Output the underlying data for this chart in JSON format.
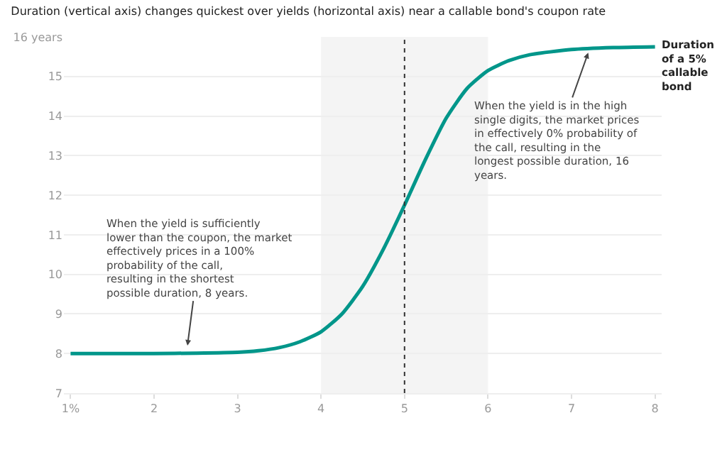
{
  "chart_data": {
    "type": "line",
    "title": "Duration (vertical axis) changes quickest over yields (horizontal axis) near a callable bond's coupon rate",
    "x": [
      1,
      1.5,
      2,
      2.5,
      3,
      3.25,
      3.5,
      3.75,
      4,
      4.25,
      4.5,
      4.75,
      5,
      5.25,
      5.5,
      5.75,
      6,
      6.25,
      6.5,
      7,
      7.5,
      8
    ],
    "series": [
      {
        "name": "Duration of a 5% callable bond",
        "color": "#00968a",
        "values": [
          8.0,
          8.0,
          8.0,
          8.01,
          8.03,
          8.07,
          8.15,
          8.3,
          8.55,
          9.0,
          9.7,
          10.65,
          11.75,
          12.9,
          13.95,
          14.7,
          15.15,
          15.4,
          15.55,
          15.68,
          15.73,
          15.75
        ]
      }
    ],
    "xlim": [
      0.92,
      8.08
    ],
    "ylim": [
      7,
      16
    ],
    "xticks": [
      {
        "value": 1,
        "label": "1%"
      },
      2,
      3,
      4,
      5,
      6,
      7,
      8
    ],
    "yticks": [
      7,
      8,
      9,
      10,
      11,
      12,
      13,
      14,
      15,
      {
        "value": 16,
        "label": "16 years"
      }
    ],
    "grid": "y",
    "legend": false,
    "marker": "none",
    "line_style": "solid",
    "bands": [
      {
        "axis": "x",
        "from": 4,
        "to": 6,
        "color": "#f4f4f4"
      }
    ],
    "ref_lines": [
      {
        "axis": "x",
        "value": 5,
        "color": "#333333",
        "line_style": "dotted"
      }
    ],
    "annotations": [
      {
        "text": "When the yield is sufficiently lower than the coupon, the market effectively prices in a 100% probability of the call, resulting in the shortest possible duration, 8 years.",
        "x": 2.4,
        "y": 8.2
      },
      {
        "text": "When the yield is in the high single digits, the market prices in effectively 0% probability of the call, resulting in the longest possible duration, 16 years.",
        "x": 7.2,
        "y": 15.6
      }
    ]
  }
}
